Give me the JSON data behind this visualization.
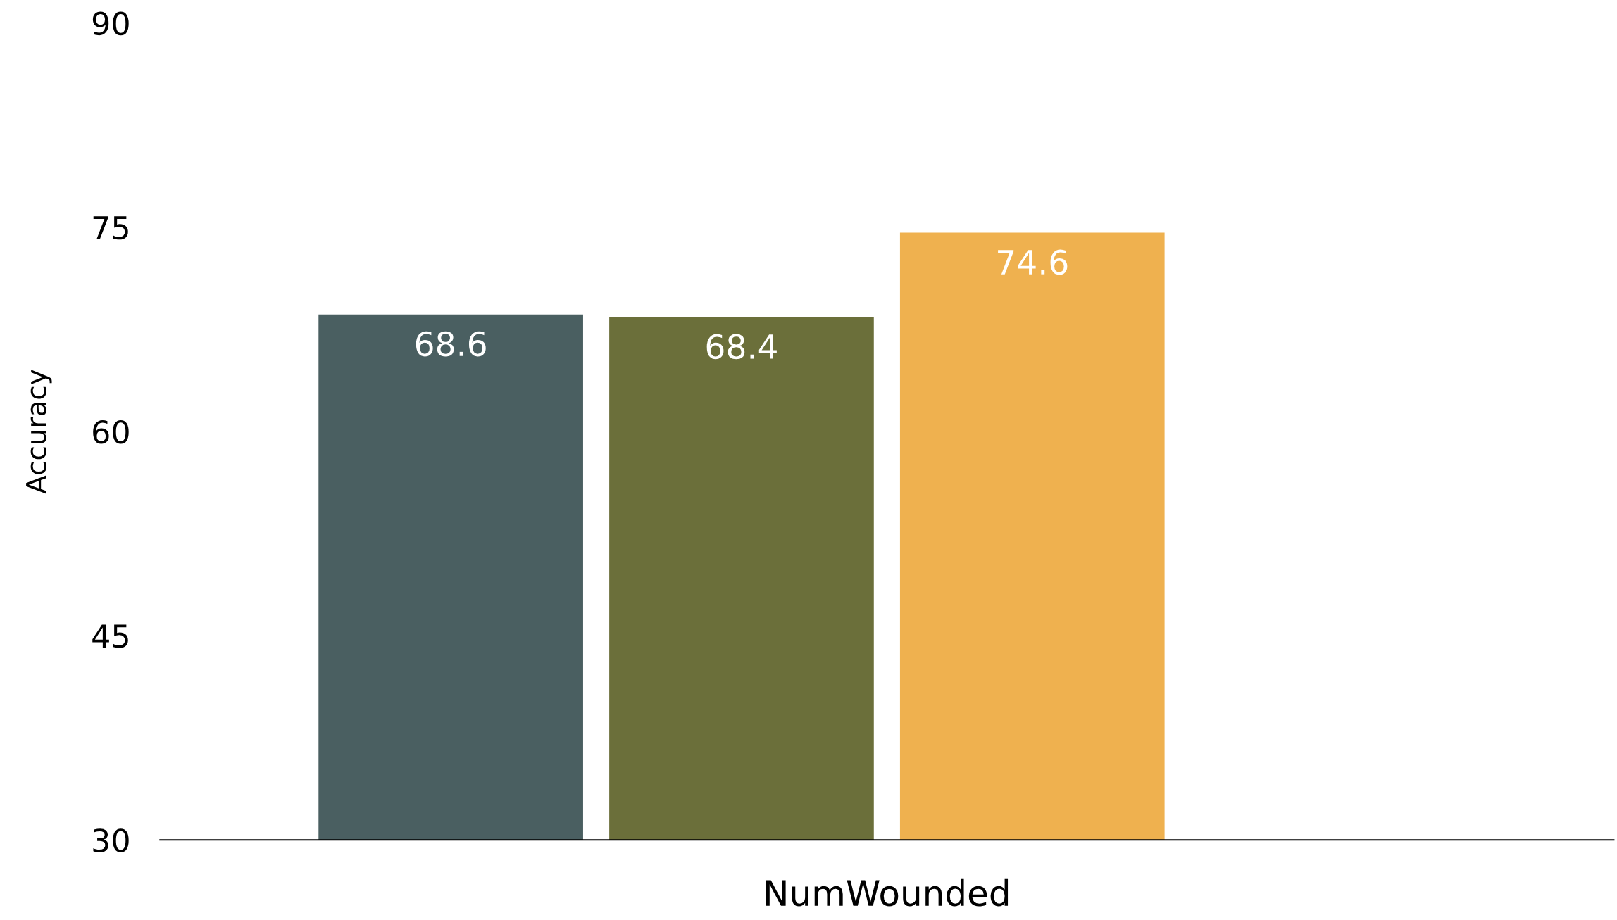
{
  "chart_data": {
    "type": "bar",
    "ylabel": "Accuracy",
    "categories": [
      "NumWounded"
    ],
    "series": [
      {
        "color": "#4a5f61",
        "values": [
          68.6
        ]
      },
      {
        "color": "#6b6f3a",
        "values": [
          68.4
        ]
      },
      {
        "color": "#efb14f",
        "values": [
          74.6
        ]
      },
      {
        "values": [
          null
        ]
      }
    ],
    "ylim": [
      30,
      90
    ],
    "yticks": [
      30,
      45,
      60,
      75,
      90
    ],
    "data_labels": true,
    "grid": false
  }
}
